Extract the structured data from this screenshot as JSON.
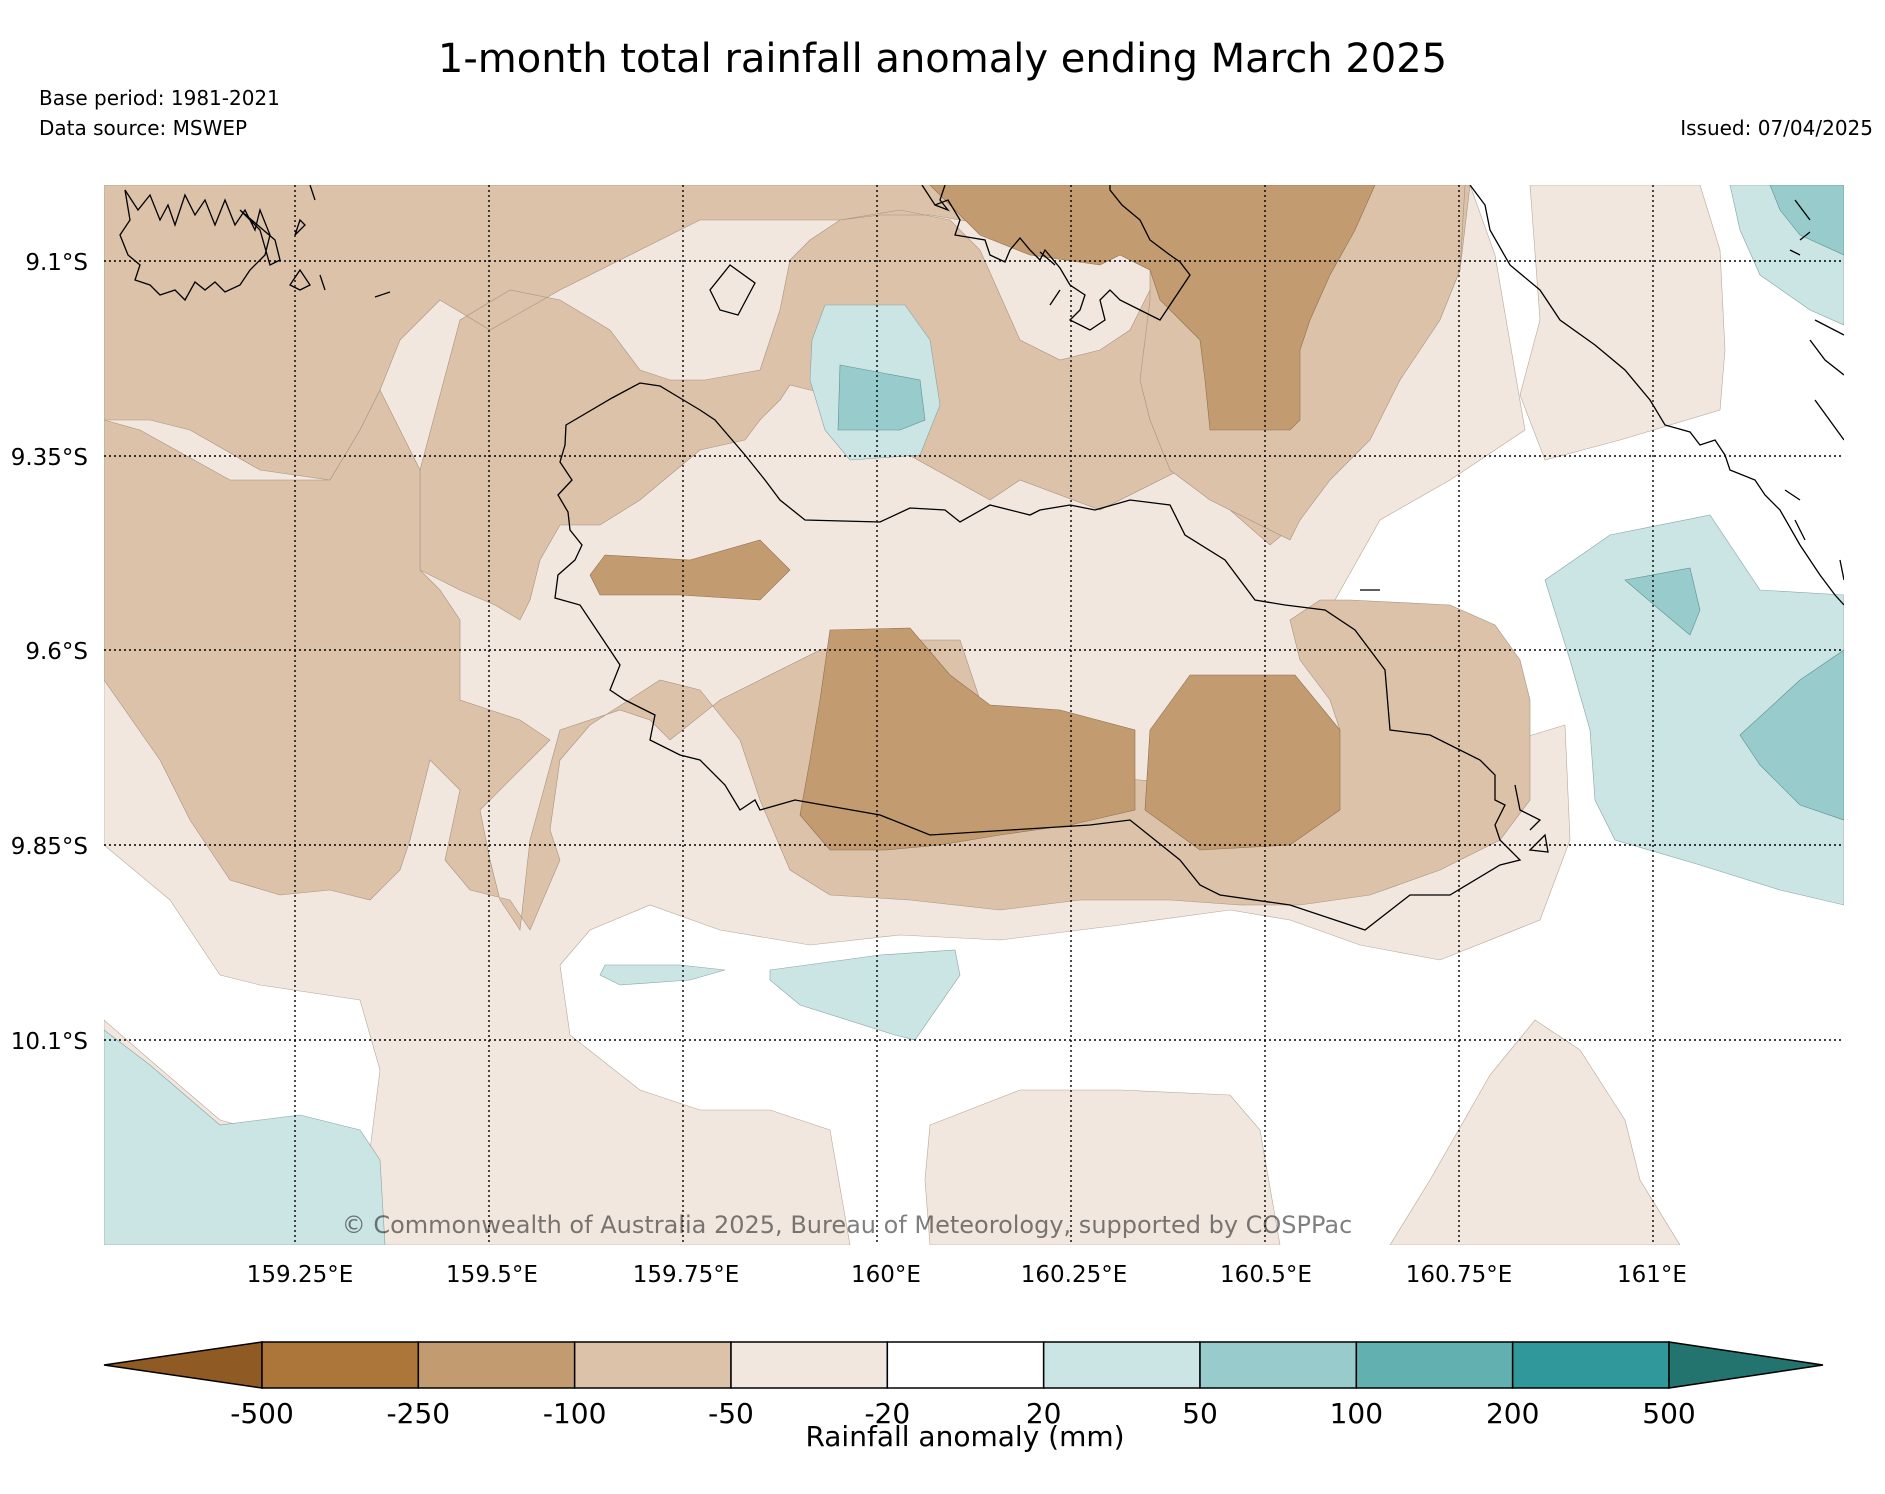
{
  "title": "1-month total rainfall anomaly ending March 2025",
  "base_period": "Base period: 1981-2021",
  "data_source": "Data source: MSWEP",
  "issued": "Issued: 07/04/2025",
  "copyright": "© Commonwealth of Australia 2025, Bureau of Meteorology, supported by COSPPac",
  "lat_labels": [
    "9.1°S",
    "9.35°S",
    "9.6°S",
    "9.85°S",
    "10.1°S"
  ],
  "lon_labels": [
    "159.25°E",
    "159.5°E",
    "159.75°E",
    "160°E",
    "160.25°E",
    "160.5°E",
    "160.75°E",
    "161°E"
  ],
  "colorbar": {
    "label": "Rainfall anomaly (mm)",
    "bounds": [
      "-500",
      "-250",
      "-100",
      "-50",
      "-20",
      "20",
      "50",
      "100",
      "200",
      "500"
    ],
    "colors": [
      "#8f5a24",
      "#ac7539",
      "#c39b70",
      "#dbc2a9",
      "#f1e7de",
      "#ffffff",
      "#cbe4e4",
      "#97cbcc",
      "#62b0b0",
      "#30979a",
      "#23746f"
    ]
  },
  "map": {
    "region_lon": [
      159.0,
      161.25
    ],
    "region_lat": [
      -9.0,
      -10.35
    ]
  }
}
